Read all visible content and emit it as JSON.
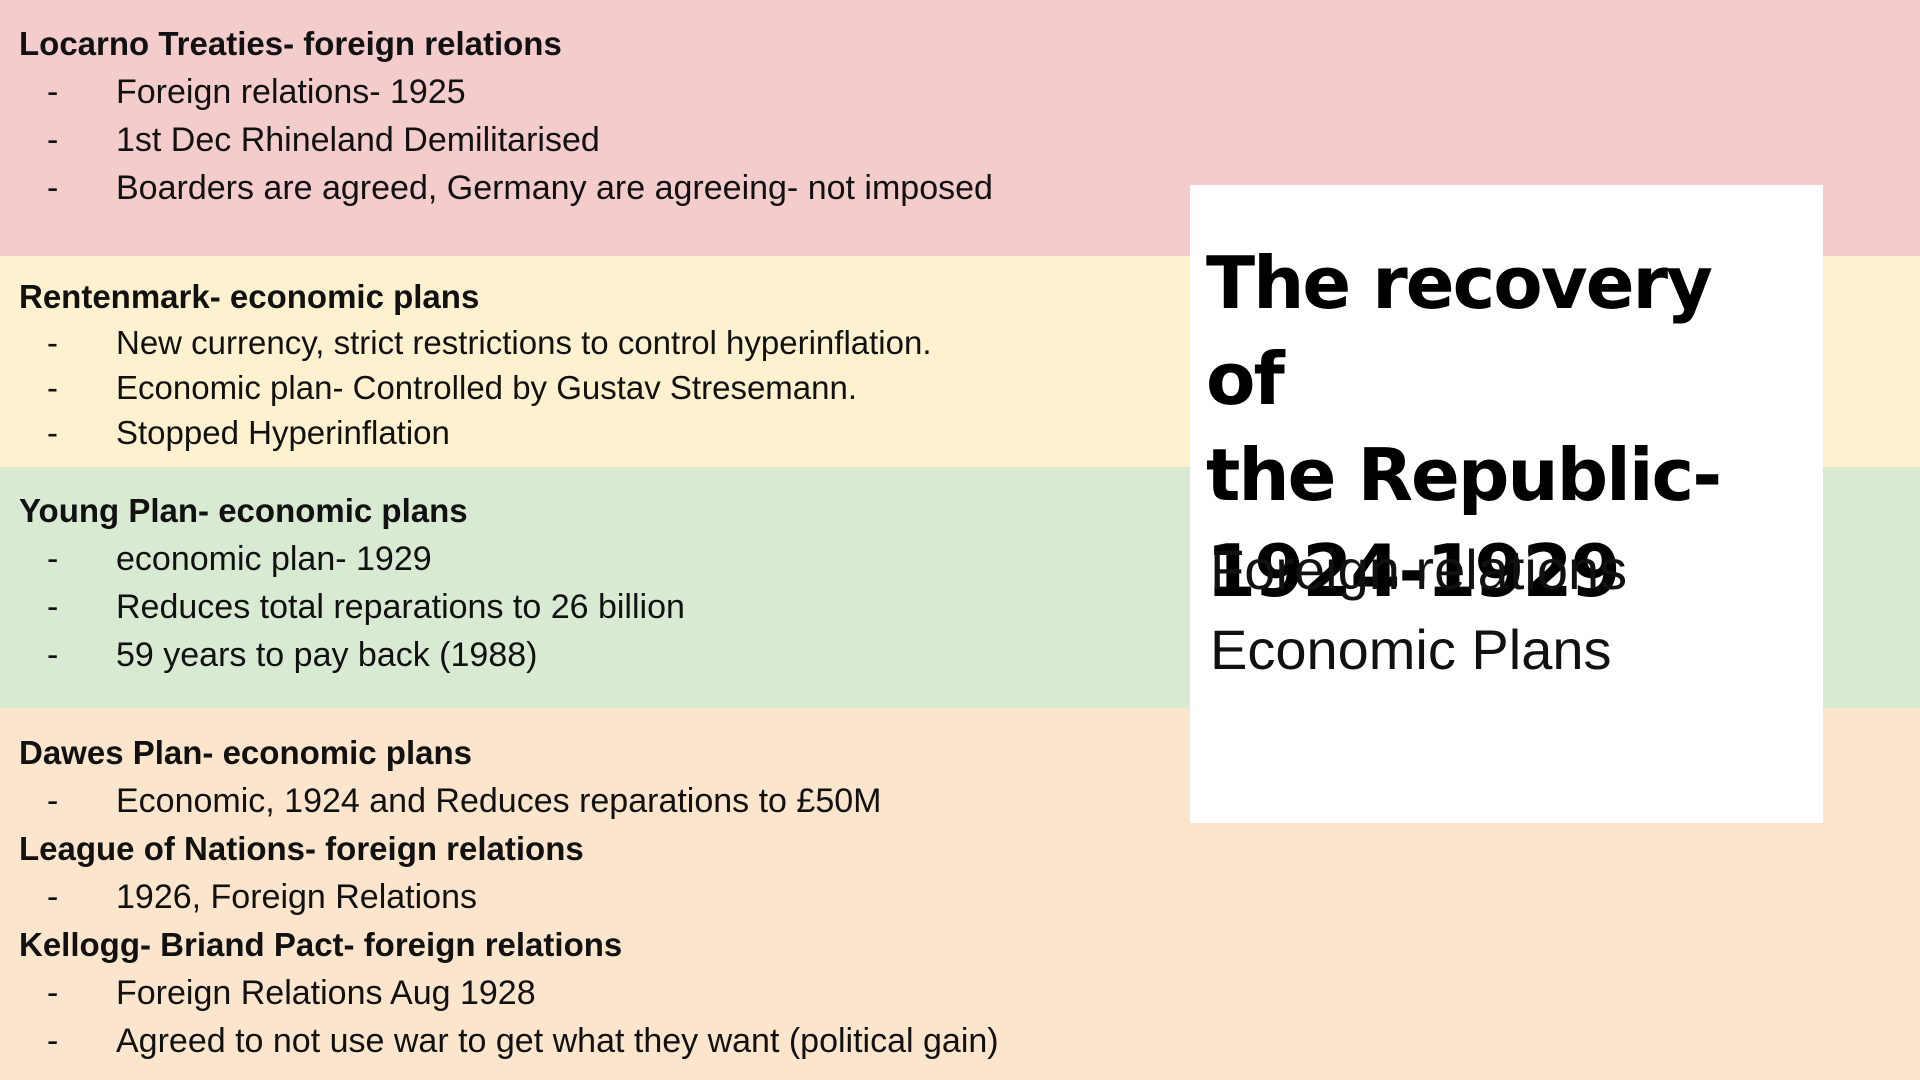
{
  "colors": {
    "band_red": "#f4cccc",
    "band_yellow": "#fdf1cf",
    "band_green": "#d9ead3",
    "band_orange": "#fce5cd",
    "card": "#ffffff"
  },
  "dash": "-",
  "locarno": {
    "heading": "Locarno Treaties- foreign relations",
    "items": [
      "Foreign relations- 1925",
      "1st Dec Rhineland Demilitarised",
      "Boarders are agreed, Germany are agreeing- not imposed"
    ]
  },
  "rentenmark": {
    "heading": "Rentenmark- economic plans",
    "items": [
      "New currency, strict restrictions to control hyperinflation.",
      "Economic plan- Controlled by Gustav Stresemann.",
      "Stopped Hyperinflation"
    ]
  },
  "young": {
    "heading": "Young Plan- economic plans",
    "items": [
      "economic plan- 1929",
      "Reduces total reparations to 26 billion",
      "59 years to pay back (1988)"
    ]
  },
  "dawes": {
    "heading": "Dawes Plan- economic plans",
    "items": [
      "Economic, 1924 and Reduces reparations to £50M"
    ]
  },
  "league": {
    "heading": "League of Nations- foreign relations",
    "items": [
      "1926, Foreign Relations"
    ]
  },
  "kellogg": {
    "heading": "Kellogg- Briand Pact- foreign relations",
    "items": [
      "Foreign Relations Aug 1928",
      "Agreed to not use war to get what they want (political gain)"
    ]
  },
  "card": {
    "title_line1": "The recovery of",
    "title_line2": "the Republic-",
    "title_line3": "1924-1929",
    "subtitle_line1": "Foreign relations",
    "subtitle_line2": "Economic Plans"
  }
}
